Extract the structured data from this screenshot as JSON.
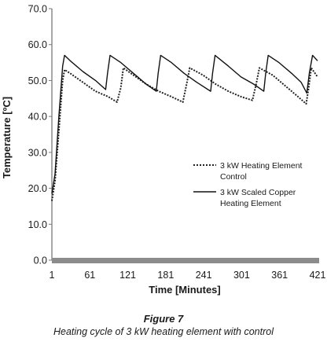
{
  "chart_data": {
    "type": "line",
    "title": "",
    "xlabel": "Time [Minutes]",
    "ylabel": "Temperature [ºC]",
    "xlim": [
      1,
      421
    ],
    "ylim": [
      0,
      70
    ],
    "x_ticks": [
      1,
      61,
      121,
      181,
      241,
      301,
      361,
      421
    ],
    "x_tick_labels": [
      "1",
      "61",
      "121",
      "181",
      "241",
      "301",
      "361",
      "421"
    ],
    "y_ticks": [
      0,
      10,
      20,
      30,
      40,
      50,
      60,
      70
    ],
    "y_tick_labels": [
      "0.0",
      "10.0",
      "20.0",
      "30.0",
      "40.0",
      "50.0",
      "60.0",
      "70.0"
    ],
    "grid": false,
    "legend_position": "center-right",
    "series": [
      {
        "name": "3 kW Heating Element Control",
        "style": "dotted",
        "color": "#222222",
        "points": [
          [
            1,
            16.5
          ],
          [
            6,
            22
          ],
          [
            12,
            36
          ],
          [
            18,
            50
          ],
          [
            21,
            53
          ],
          [
            30,
            52
          ],
          [
            50,
            49.5
          ],
          [
            70,
            47
          ],
          [
            90,
            45.5
          ],
          [
            104,
            44
          ],
          [
            110,
            48
          ],
          [
            114,
            53.5
          ],
          [
            130,
            51.5
          ],
          [
            150,
            49
          ],
          [
            170,
            47
          ],
          [
            190,
            45.5
          ],
          [
            208,
            44
          ],
          [
            214,
            49
          ],
          [
            219,
            53.5
          ],
          [
            240,
            51.5
          ],
          [
            260,
            49
          ],
          [
            280,
            47
          ],
          [
            300,
            45.5
          ],
          [
            318,
            44.5
          ],
          [
            324,
            49
          ],
          [
            329,
            53.5
          ],
          [
            350,
            51.5
          ],
          [
            370,
            48.5
          ],
          [
            390,
            45.5
          ],
          [
            403,
            43.5
          ],
          [
            407,
            48
          ],
          [
            411,
            53.5
          ],
          [
            421,
            51
          ]
        ]
      },
      {
        "name": "3 kW Scaled Copper Heating Element",
        "style": "solid",
        "color": "#111111",
        "points": [
          [
            1,
            18.5
          ],
          [
            6,
            24
          ],
          [
            12,
            40
          ],
          [
            18,
            54
          ],
          [
            21,
            57
          ],
          [
            30,
            55.5
          ],
          [
            50,
            52.5
          ],
          [
            70,
            50
          ],
          [
            86,
            47.5
          ],
          [
            89,
            52
          ],
          [
            93,
            57
          ],
          [
            110,
            55
          ],
          [
            130,
            52
          ],
          [
            150,
            49
          ],
          [
            166,
            47
          ],
          [
            169,
            52
          ],
          [
            173,
            57
          ],
          [
            190,
            55
          ],
          [
            210,
            52
          ],
          [
            230,
            49.5
          ],
          [
            252,
            47
          ],
          [
            255,
            52
          ],
          [
            259,
            57
          ],
          [
            280,
            54
          ],
          [
            300,
            51
          ],
          [
            320,
            49
          ],
          [
            336,
            47
          ],
          [
            339,
            52
          ],
          [
            343,
            57
          ],
          [
            360,
            55
          ],
          [
            380,
            52
          ],
          [
            395,
            49.5
          ],
          [
            404,
            46.5
          ],
          [
            408,
            52
          ],
          [
            413,
            57
          ],
          [
            421,
            55.5
          ]
        ]
      }
    ]
  },
  "legend": [
    {
      "line1": "3 kW Heating Element",
      "line2": "Control"
    },
    {
      "line1": "3 kW Scaled Copper",
      "line2": "Heating Element"
    }
  ],
  "caption": {
    "label": "Figure 7",
    "text": "Heating cycle of 3 kW heating element with control"
  }
}
